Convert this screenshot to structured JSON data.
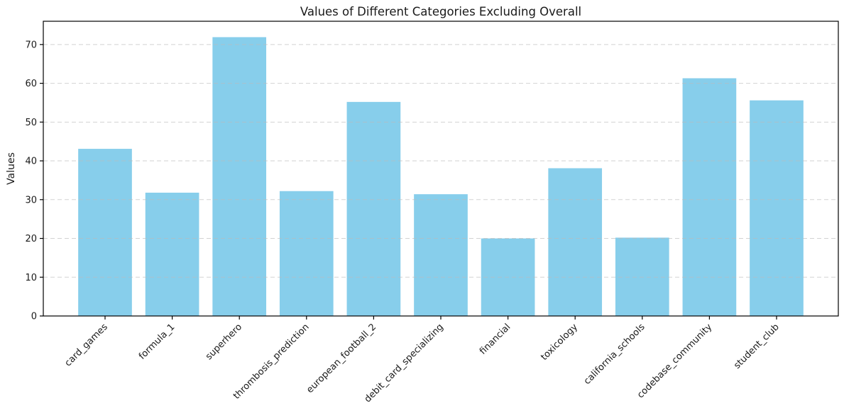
{
  "chart_data": {
    "type": "bar",
    "title": "Values of Different Categories Excluding Overall",
    "xlabel": "",
    "ylabel": "Values",
    "categories": [
      "card_games",
      "formula_1",
      "superhero",
      "thrombosis_prediction",
      "european_football_2",
      "debit_card_specializing",
      "financial",
      "toxicology",
      "california_schools",
      "codebase_community",
      "student_club"
    ],
    "values": [
      43.1,
      31.8,
      71.9,
      32.2,
      55.2,
      31.4,
      20.0,
      38.1,
      20.2,
      61.3,
      55.6
    ],
    "yticks": [
      0,
      10,
      20,
      30,
      40,
      50,
      60,
      70
    ],
    "ylim": [
      0,
      76
    ],
    "bar_color": "#87CEEB",
    "bar_width_fraction": 0.8,
    "grid": "horizontal-dashed",
    "grid_color": "#bbbbbb",
    "axis_color": "#000000",
    "background_color": "#ffffff",
    "tick_label_rotation": 45,
    "legend_position": "none"
  }
}
